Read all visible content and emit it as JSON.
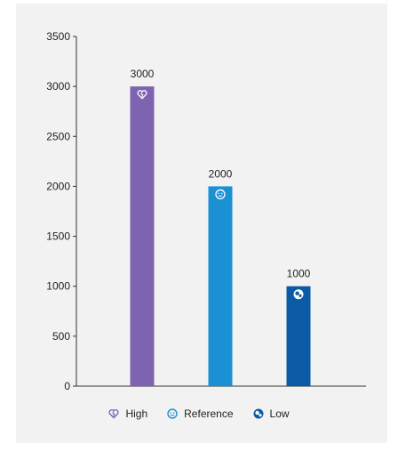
{
  "chart_data": {
    "type": "bar",
    "categories": [
      "High",
      "Reference",
      "Low"
    ],
    "values": [
      3000,
      2000,
      1000
    ],
    "data_labels": [
      "3000",
      "2000",
      "1000"
    ],
    "ylim": [
      0,
      3500
    ],
    "yticks": [
      0,
      500,
      1000,
      1500,
      2000,
      2500,
      3000,
      3500
    ],
    "colors": [
      "#7e64b0",
      "#1b91d3",
      "#0a5aa6"
    ],
    "icons": [
      "heart-broken-icon",
      "smiley-icon",
      "face-in-circle-icon"
    ],
    "legend_position": "bottom",
    "grid": false,
    "xlabel": "",
    "ylabel": ""
  },
  "legend": [
    {
      "label": "High",
      "icon": "heart-broken-icon",
      "color": "#7e64b0"
    },
    {
      "label": "Reference",
      "icon": "smiley-icon",
      "color": "#1b91d3"
    },
    {
      "label": "Low",
      "icon": "face-in-circle-icon",
      "color": "#0a5aa6"
    }
  ]
}
